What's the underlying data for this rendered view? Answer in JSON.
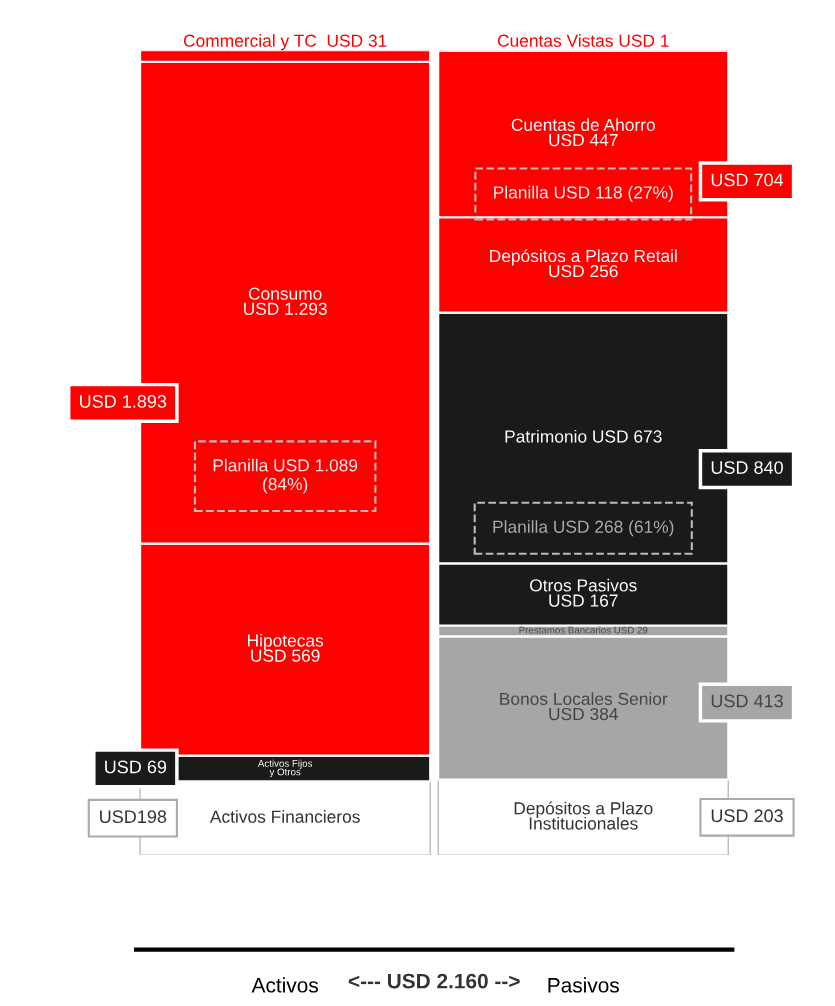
{
  "chart_data": {
    "type": "bar",
    "stacked": true,
    "categories": [
      "Activos",
      "Pasivos"
    ],
    "ylim": [
      0,
      2160
    ],
    "tick_labels": "x",
    "legend": false,
    "series": [
      {
        "color": "#ffffff",
        "values": [
          198,
          null
        ],
        "value_labels": [
          "Activos Financieros",
          null
        ]
      },
      {
        "color": "#1a1a1a",
        "values": [
          69,
          null
        ],
        "value_labels": [
          "Activos Fijos\ny Otros",
          null
        ]
      },
      {
        "color": "#ff0000",
        "values": [
          569,
          null
        ],
        "value_labels": [
          "Hipotecas\nUSD 569",
          null
        ]
      },
      {
        "color": "#ff0000",
        "values": [
          1293,
          null
        ],
        "value_labels": [
          "Consumo\nUSD 1.293",
          null
        ]
      },
      {
        "color": "#ff0000",
        "values": [
          31,
          null
        ],
        "value_labels": [
          "Commercial y TC  USD 31",
          null
        ]
      },
      {
        "color": "#ffffff",
        "values": [
          null,
          203
        ],
        "value_labels": [
          null,
          "Depósitos a Plazo\nInstitucionales"
        ]
      },
      {
        "color": "#a6a6a6",
        "values": [
          null,
          384
        ],
        "value_labels": [
          null,
          "Bonos Locales Senior\nUSD 384"
        ]
      },
      {
        "color": "#a6a6a6",
        "values": [
          null,
          29
        ],
        "value_labels": [
          null,
          "Prestamos Bancarios USD 29"
        ]
      },
      {
        "color": "#1a1a1a",
        "values": [
          null,
          167
        ],
        "value_labels": [
          null,
          "Otros Pasivos\nUSD 167"
        ]
      },
      {
        "color": "#1a1a1a",
        "values": [
          null,
          673
        ],
        "value_labels": [
          null,
          "Patrimonio USD 673"
        ]
      },
      {
        "color": "#ff0000",
        "values": [
          null,
          256
        ],
        "value_labels": [
          null,
          "Depósitos a Plazo Retail\nUSD 256"
        ]
      },
      {
        "color": "#ff0000",
        "values": [
          null,
          447
        ],
        "value_labels": [
          null,
          "Cuentas de Ahorro\nUSD 447"
        ]
      },
      {
        "color": "#ff0000",
        "values": [
          null,
          1
        ],
        "value_labels": [
          null,
          "Cuentas Vistas USD 1"
        ]
      }
    ],
    "annotations": [
      "USD198",
      "USD 69",
      "USD 1.893",
      "USD 203",
      "USD 413",
      "USD 840",
      "USD 704",
      "Planilla USD 1.089\n(84%)",
      "Planilla USD 268 (61%)",
      "Planilla USD 118 (27%)",
      "<--- USD 2.160 -->"
    ]
  }
}
